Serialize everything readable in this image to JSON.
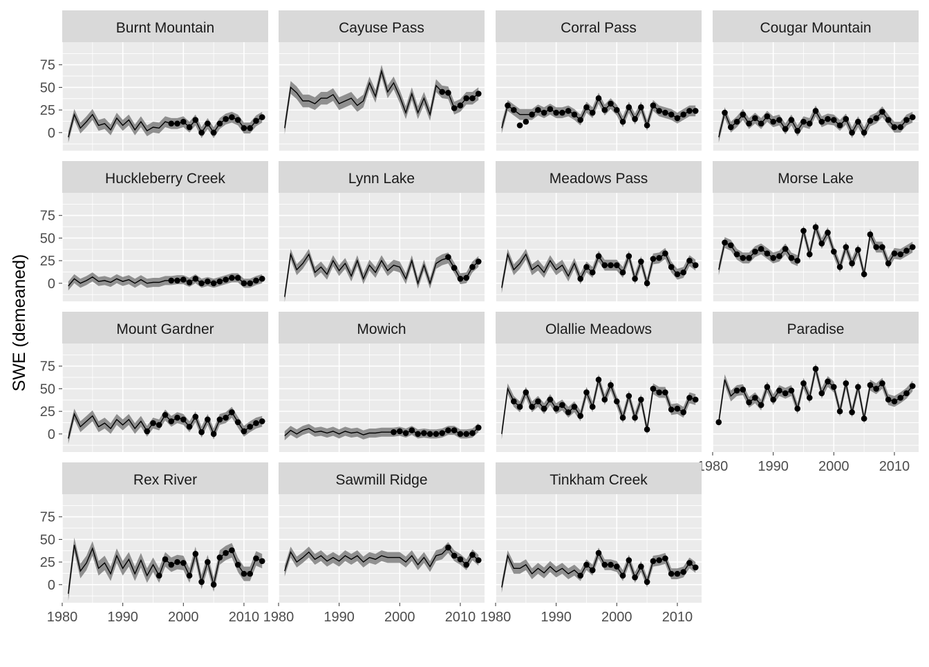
{
  "chart_data": {
    "type": "line",
    "ylabel": "SWE (demeaned)",
    "xlabel": "",
    "xlim": [
      1980,
      2014
    ],
    "ylim": [
      -20,
      100
    ],
    "x_ticks": [
      1980,
      1990,
      2000,
      2010
    ],
    "y_ticks": [
      0,
      25,
      50,
      75
    ],
    "grid": true,
    "years": [
      1981,
      1982,
      1983,
      1984,
      1985,
      1986,
      1987,
      1988,
      1989,
      1990,
      1991,
      1992,
      1993,
      1994,
      1995,
      1996,
      1997,
      1998,
      1999,
      2000,
      2001,
      2002,
      2003,
      2004,
      2005,
      2006,
      2007,
      2008,
      2009,
      2010,
      2011,
      2012,
      2013
    ],
    "colors": {
      "panel_bg": "#ebebeb",
      "strip_bg": "#d9d9d9",
      "grid": "#ffffff",
      "band": "#7f7f7f",
      "line": "#000000",
      "point": "#000000",
      "axis_text": "#4d4d4d",
      "strip_text": "#1a1a1a"
    },
    "facets": [
      {
        "name": "Burnt Mountain",
        "band_width": 6,
        "estimate": [
          -5,
          20,
          5,
          12,
          20,
          8,
          10,
          3,
          16,
          8,
          14,
          3,
          12,
          2,
          6,
          5,
          12,
          10,
          10,
          12,
          6,
          14,
          0,
          10,
          0,
          10,
          15,
          17,
          14,
          5,
          5,
          13,
          17
        ],
        "observed": [
          null,
          null,
          null,
          null,
          null,
          null,
          null,
          null,
          null,
          null,
          null,
          null,
          null,
          null,
          null,
          null,
          null,
          10,
          10,
          12,
          6,
          14,
          0,
          10,
          0,
          10,
          15,
          17,
          14,
          5,
          5,
          13,
          17
        ]
      },
      {
        "name": "Cayuse Pass",
        "band_width": 7,
        "estimate": [
          5,
          50,
          44,
          35,
          35,
          32,
          38,
          38,
          42,
          32,
          35,
          38,
          30,
          35,
          55,
          40,
          68,
          45,
          55,
          40,
          22,
          43,
          22,
          38,
          20,
          52,
          45,
          44,
          27,
          30,
          38,
          38,
          43
        ],
        "observed": [
          null,
          null,
          null,
          null,
          null,
          null,
          null,
          null,
          null,
          null,
          null,
          null,
          null,
          null,
          null,
          null,
          null,
          null,
          null,
          null,
          null,
          null,
          null,
          null,
          null,
          null,
          45,
          44,
          27,
          30,
          38,
          38,
          43
        ]
      },
      {
        "name": "Corral Pass",
        "band_width": 6,
        "estimate": [
          5,
          30,
          25,
          20,
          20,
          20,
          25,
          22,
          26,
          22,
          22,
          24,
          20,
          14,
          28,
          22,
          38,
          25,
          32,
          25,
          12,
          28,
          15,
          28,
          8,
          30,
          24,
          22,
          20,
          16,
          20,
          24,
          24
        ],
        "observed": [
          null,
          30,
          25,
          8,
          12,
          20,
          25,
          22,
          26,
          22,
          22,
          24,
          20,
          14,
          28,
          22,
          38,
          25,
          32,
          25,
          12,
          28,
          15,
          28,
          8,
          30,
          24,
          22,
          20,
          16,
          20,
          24,
          24
        ]
      },
      {
        "name": "Cougar Mountain",
        "band_width": 6,
        "estimate": [
          -5,
          22,
          6,
          12,
          20,
          10,
          16,
          10,
          18,
          12,
          14,
          4,
          14,
          2,
          12,
          10,
          24,
          12,
          15,
          14,
          8,
          15,
          0,
          12,
          0,
          13,
          16,
          23,
          14,
          6,
          6,
          14,
          17
        ],
        "observed": [
          null,
          22,
          6,
          12,
          20,
          10,
          16,
          10,
          18,
          12,
          14,
          4,
          14,
          2,
          12,
          10,
          24,
          12,
          15,
          14,
          8,
          15,
          0,
          12,
          0,
          13,
          16,
          23,
          14,
          6,
          6,
          14,
          17
        ]
      },
      {
        "name": "Huckleberry Creek",
        "band_width": 5,
        "estimate": [
          -3,
          5,
          0,
          3,
          7,
          2,
          3,
          1,
          5,
          2,
          4,
          0,
          4,
          0,
          1,
          1,
          3,
          3,
          4,
          4,
          1,
          5,
          0,
          2,
          0,
          2,
          4,
          6,
          6,
          0,
          0,
          3,
          5
        ],
        "observed": [
          null,
          null,
          null,
          null,
          null,
          null,
          null,
          null,
          null,
          null,
          null,
          null,
          null,
          null,
          null,
          null,
          null,
          3,
          3,
          4,
          1,
          5,
          0,
          2,
          0,
          2,
          4,
          6,
          6,
          0,
          0,
          3,
          5
        ]
      },
      {
        "name": "Lynn Lake",
        "band_width": 6,
        "estimate": [
          -15,
          32,
          15,
          22,
          32,
          12,
          18,
          10,
          25,
          14,
          22,
          8,
          25,
          5,
          20,
          12,
          25,
          14,
          20,
          18,
          5,
          25,
          0,
          20,
          0,
          22,
          26,
          28,
          17,
          5,
          6,
          18,
          24
        ],
        "observed": [
          null,
          null,
          null,
          null,
          null,
          null,
          null,
          null,
          null,
          null,
          null,
          null,
          null,
          null,
          null,
          null,
          null,
          null,
          null,
          null,
          null,
          null,
          null,
          null,
          null,
          null,
          null,
          29,
          17,
          5,
          6,
          18,
          24
        ]
      },
      {
        "name": "Meadows Pass",
        "band_width": 6,
        "estimate": [
          -5,
          32,
          15,
          22,
          32,
          15,
          20,
          12,
          25,
          15,
          20,
          8,
          22,
          5,
          18,
          12,
          30,
          20,
          20,
          20,
          12,
          30,
          5,
          24,
          0,
          27,
          28,
          33,
          18,
          10,
          12,
          25,
          20
        ],
        "observed": [
          null,
          null,
          null,
          null,
          null,
          null,
          null,
          null,
          null,
          null,
          null,
          null,
          null,
          5,
          18,
          12,
          30,
          20,
          20,
          20,
          12,
          30,
          5,
          24,
          0,
          27,
          28,
          33,
          18,
          10,
          12,
          25,
          20
        ]
      },
      {
        "name": "Morse Lake",
        "band_width": 6,
        "estimate": [
          15,
          45,
          42,
          32,
          28,
          28,
          35,
          38,
          33,
          28,
          30,
          38,
          28,
          25,
          58,
          32,
          62,
          44,
          56,
          35,
          18,
          40,
          22,
          37,
          10,
          54,
          40,
          40,
          22,
          33,
          32,
          36,
          40
        ],
        "observed": [
          null,
          45,
          42,
          32,
          28,
          28,
          35,
          38,
          33,
          28,
          30,
          38,
          28,
          25,
          58,
          32,
          62,
          44,
          56,
          35,
          18,
          40,
          22,
          37,
          10,
          54,
          40,
          40,
          22,
          33,
          32,
          36,
          40
        ]
      },
      {
        "name": "Mount Gardner",
        "band_width": 6,
        "estimate": [
          -5,
          22,
          8,
          14,
          20,
          8,
          12,
          6,
          16,
          10,
          16,
          6,
          14,
          3,
          12,
          10,
          21,
          14,
          18,
          16,
          8,
          19,
          2,
          16,
          0,
          16,
          18,
          24,
          13,
          3,
          8,
          12,
          14
        ],
        "observed": [
          null,
          null,
          null,
          null,
          null,
          null,
          null,
          null,
          null,
          null,
          null,
          null,
          null,
          3,
          12,
          10,
          21,
          14,
          18,
          16,
          8,
          19,
          2,
          16,
          0,
          16,
          18,
          24,
          13,
          3,
          8,
          12,
          14
        ]
      },
      {
        "name": "Mowich",
        "band_width": 5,
        "estimate": [
          -2,
          4,
          0,
          4,
          6,
          2,
          3,
          1,
          3,
          0,
          3,
          1,
          2,
          -1,
          1,
          1,
          2,
          2,
          2,
          3,
          1,
          4,
          0,
          1,
          0,
          0,
          1,
          4,
          4,
          0,
          0,
          1,
          7
        ],
        "observed": [
          null,
          null,
          null,
          null,
          null,
          null,
          null,
          null,
          null,
          null,
          null,
          null,
          null,
          null,
          null,
          null,
          null,
          null,
          2,
          3,
          1,
          4,
          0,
          1,
          0,
          0,
          1,
          4,
          4,
          0,
          0,
          1,
          7
        ]
      },
      {
        "name": "Olallie Meadows",
        "band_width": 6,
        "estimate": [
          0,
          50,
          36,
          30,
          46,
          30,
          36,
          28,
          38,
          28,
          32,
          24,
          30,
          20,
          46,
          30,
          60,
          38,
          54,
          36,
          18,
          42,
          18,
          38,
          5,
          50,
          46,
          46,
          27,
          28,
          24,
          40,
          38
        ],
        "observed": [
          null,
          null,
          36,
          30,
          46,
          30,
          36,
          28,
          38,
          28,
          32,
          24,
          30,
          20,
          46,
          30,
          60,
          38,
          54,
          36,
          18,
          42,
          18,
          38,
          5,
          50,
          46,
          46,
          27,
          28,
          24,
          40,
          38
        ]
      },
      {
        "name": "Paradise",
        "band_width": 6,
        "estimate": [
          13,
          60,
          42,
          48,
          49,
          35,
          40,
          32,
          52,
          38,
          48,
          45,
          48,
          28,
          56,
          40,
          72,
          45,
          58,
          52,
          25,
          56,
          24,
          52,
          17,
          54,
          50,
          56,
          38,
          36,
          40,
          45,
          53
        ],
        "observed": [
          13,
          null,
          null,
          48,
          49,
          35,
          40,
          32,
          52,
          38,
          48,
          45,
          48,
          28,
          56,
          40,
          72,
          45,
          58,
          52,
          25,
          56,
          24,
          52,
          17,
          54,
          50,
          56,
          38,
          36,
          40,
          45,
          53
        ]
      },
      {
        "name": "Rex River",
        "band_width": 8,
        "estimate": [
          -10,
          44,
          15,
          24,
          40,
          18,
          24,
          12,
          32,
          18,
          28,
          12,
          27,
          10,
          22,
          10,
          28,
          22,
          25,
          24,
          10,
          34,
          3,
          25,
          0,
          30,
          35,
          38,
          22,
          12,
          12,
          29,
          26
        ],
        "observed": [
          null,
          null,
          null,
          null,
          null,
          null,
          null,
          null,
          null,
          null,
          null,
          null,
          null,
          null,
          null,
          10,
          28,
          22,
          25,
          24,
          10,
          34,
          3,
          25,
          0,
          30,
          35,
          38,
          22,
          12,
          12,
          29,
          26
        ]
      },
      {
        "name": "Sawmill Ridge",
        "band_width": 6,
        "estimate": [
          15,
          36,
          25,
          30,
          36,
          28,
          32,
          26,
          30,
          26,
          32,
          28,
          32,
          25,
          30,
          28,
          32,
          30,
          30,
          30,
          25,
          32,
          22,
          30,
          20,
          32,
          34,
          41,
          32,
          28,
          22,
          33,
          27
        ],
        "observed": [
          null,
          null,
          null,
          null,
          null,
          null,
          null,
          null,
          null,
          null,
          null,
          null,
          null,
          null,
          null,
          null,
          null,
          null,
          null,
          null,
          null,
          null,
          null,
          null,
          null,
          null,
          null,
          41,
          32,
          28,
          22,
          33,
          27
        ]
      },
      {
        "name": "Tinkham Creek",
        "band_width": 6,
        "estimate": [
          -3,
          32,
          18,
          18,
          22,
          12,
          18,
          13,
          20,
          14,
          18,
          12,
          16,
          10,
          22,
          16,
          35,
          22,
          22,
          20,
          10,
          27,
          8,
          20,
          3,
          26,
          27,
          29,
          12,
          12,
          14,
          24,
          19
        ],
        "observed": [
          null,
          null,
          null,
          null,
          null,
          null,
          null,
          null,
          null,
          null,
          null,
          null,
          null,
          10,
          22,
          16,
          35,
          22,
          22,
          20,
          10,
          27,
          8,
          20,
          3,
          26,
          27,
          29,
          12,
          12,
          14,
          24,
          19
        ]
      }
    ]
  }
}
